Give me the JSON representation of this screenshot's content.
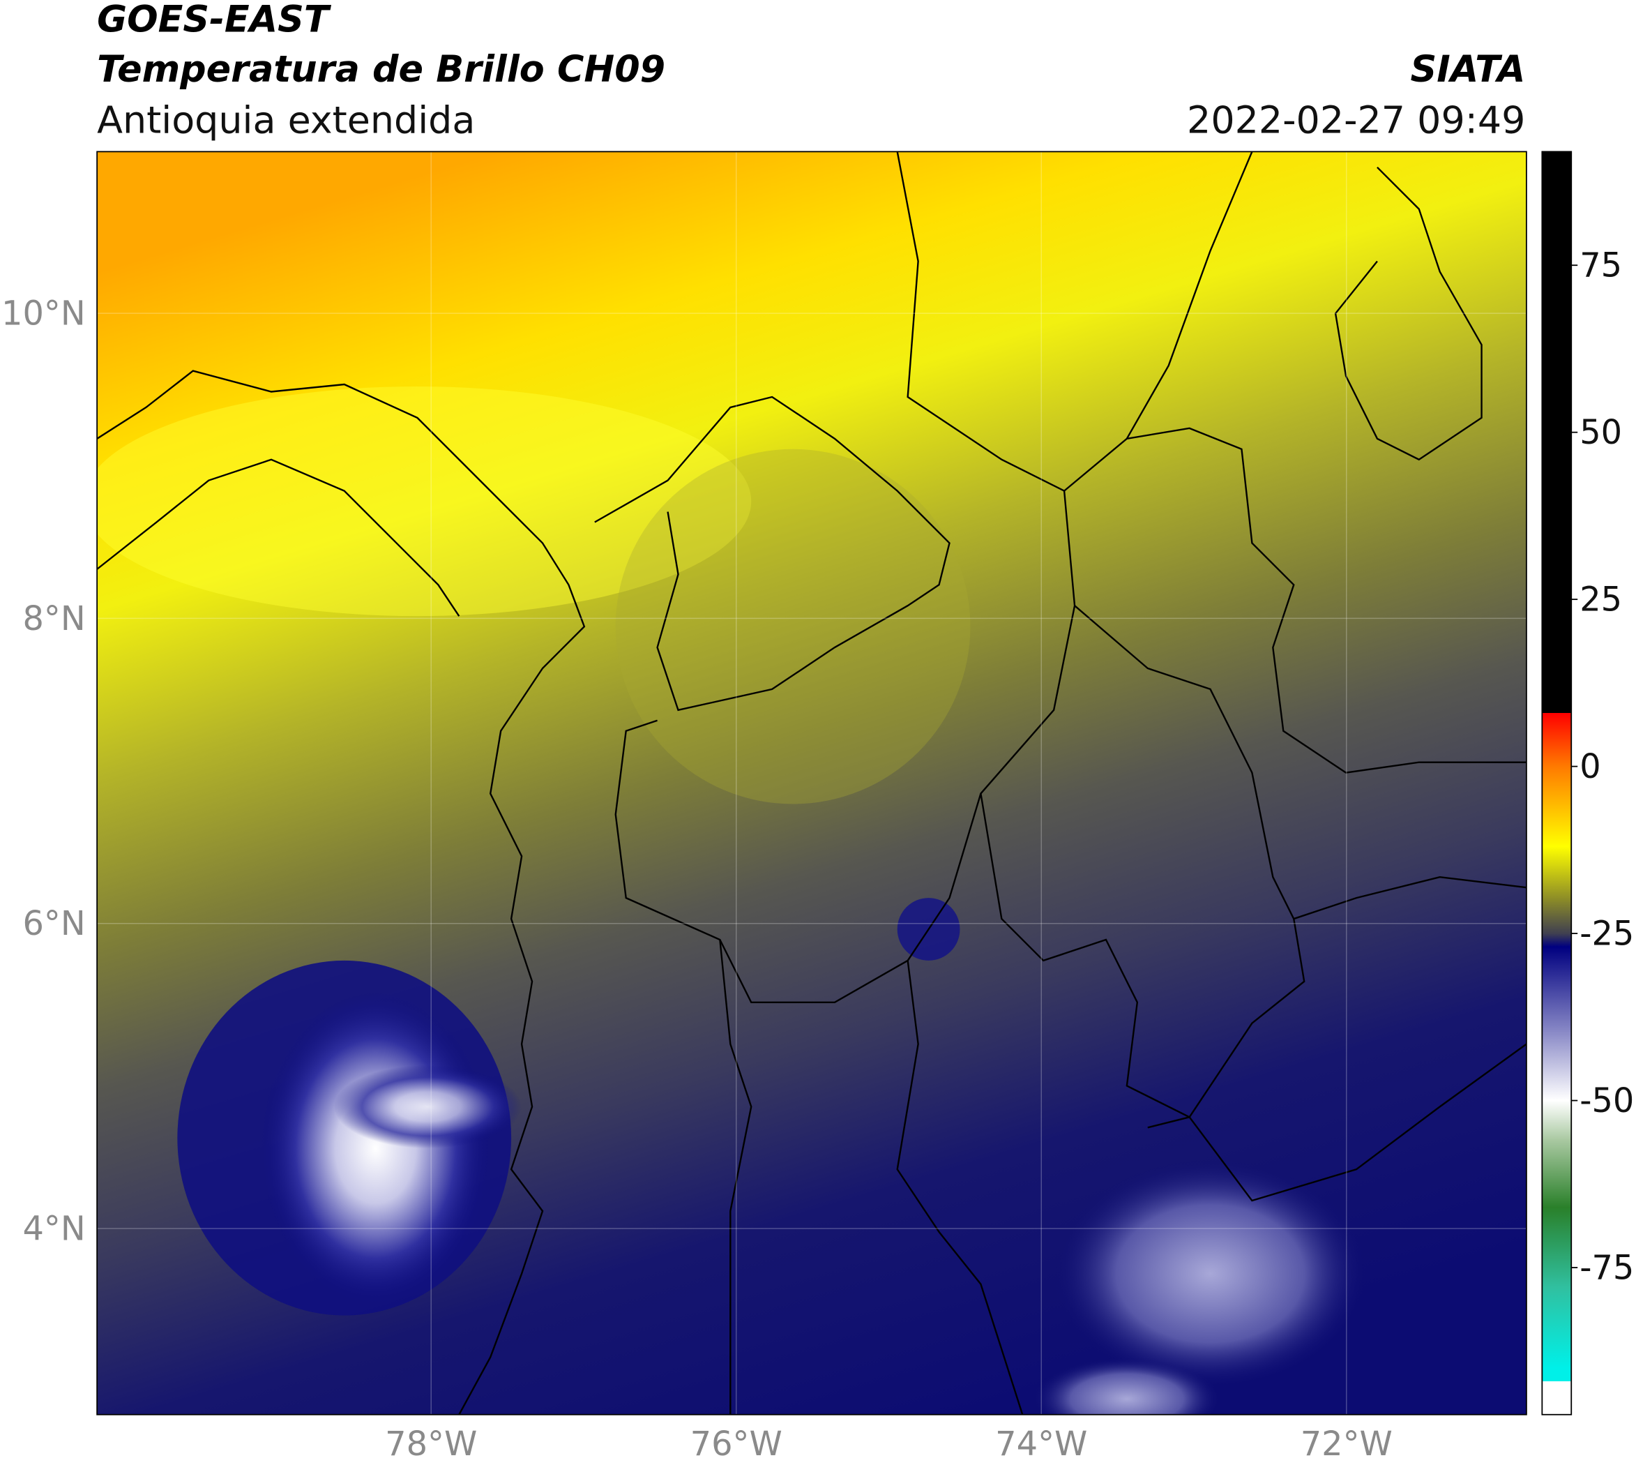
{
  "header": {
    "title": "GOES-EAST",
    "subtitle": "Temperatura de Brillo CH09",
    "region": "Antioquia extendida",
    "source": "SIATA",
    "datetime": "2022-02-27 09:49"
  },
  "map": {
    "lonlim": [
      -80.19,
      -70.82
    ],
    "latlim": [
      2.78,
      11.06
    ],
    "lonticks": [
      {
        "value": -78,
        "label": "78°W"
      },
      {
        "value": -76,
        "label": "76°W"
      },
      {
        "value": -74,
        "label": "74°W"
      },
      {
        "value": -72,
        "label": "72°W"
      }
    ],
    "latticks": [
      {
        "value": 10,
        "label": "10°N"
      },
      {
        "value": 8,
        "label": "8°N"
      },
      {
        "value": 6,
        "label": "6°N"
      },
      {
        "value": 4,
        "label": "4°N"
      }
    ],
    "grid": true
  },
  "colorbar": {
    "vlim": [
      -97,
      92
    ],
    "ticks": [
      75,
      50,
      25,
      0,
      -25,
      -50,
      -75
    ],
    "stops": [
      {
        "value": 92,
        "color": "#000000"
      },
      {
        "value": 8,
        "color": "#000000"
      },
      {
        "value": 8,
        "color": "#ff0000"
      },
      {
        "value": 0,
        "color": "#ff7a00"
      },
      {
        "value": -12,
        "color": "#ffff00"
      },
      {
        "value": -20,
        "color": "#8a8a28"
      },
      {
        "value": -25,
        "color": "#404050"
      },
      {
        "value": -27,
        "color": "#000080"
      },
      {
        "value": -40,
        "color": "#8c8cc8"
      },
      {
        "value": -50,
        "color": "#ffffff"
      },
      {
        "value": -56,
        "color": "#a8c8a0"
      },
      {
        "value": -66,
        "color": "#2a802a"
      },
      {
        "value": -78,
        "color": "#30c0a0"
      },
      {
        "value": -90,
        "color": "#00f0e8"
      },
      {
        "value": -92,
        "color": "#00f0e8"
      },
      {
        "value": -92,
        "color": "#ffffff"
      },
      {
        "value": -97,
        "color": "#ffffff"
      }
    ]
  }
}
